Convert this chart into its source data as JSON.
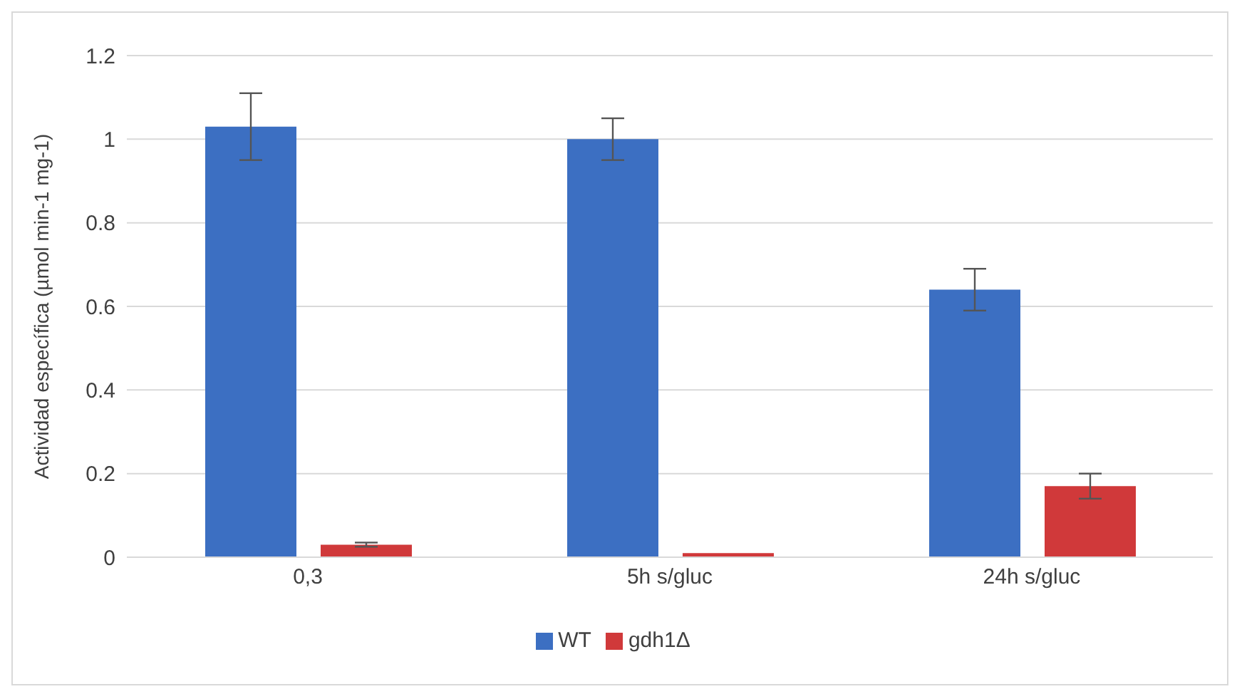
{
  "chart_data": {
    "type": "bar",
    "ylabel": "Actividad específica (µmol min-1 mg-1)",
    "categories": [
      "0,3",
      "5h s/gluc",
      "24h s/gluc"
    ],
    "series": [
      {
        "name": "WT",
        "color": "#3c6fc2",
        "values": [
          1.03,
          1.0,
          0.64
        ],
        "errors": [
          [
            0.95,
            1.11
          ],
          [
            0.95,
            1.05
          ],
          [
            0.59,
            0.69
          ]
        ]
      },
      {
        "name": "gdh1Δ",
        "color": "#d0393a",
        "values": [
          0.03,
          0.01,
          0.17
        ],
        "errors": [
          [
            0.025,
            0.035
          ],
          null,
          [
            0.14,
            0.2
          ]
        ]
      }
    ],
    "ylim": [
      0,
      1.2
    ],
    "yticks": [
      0,
      0.2,
      0.4,
      0.6,
      0.8,
      1,
      1.2
    ],
    "grid": "y",
    "legend": "bottom"
  }
}
